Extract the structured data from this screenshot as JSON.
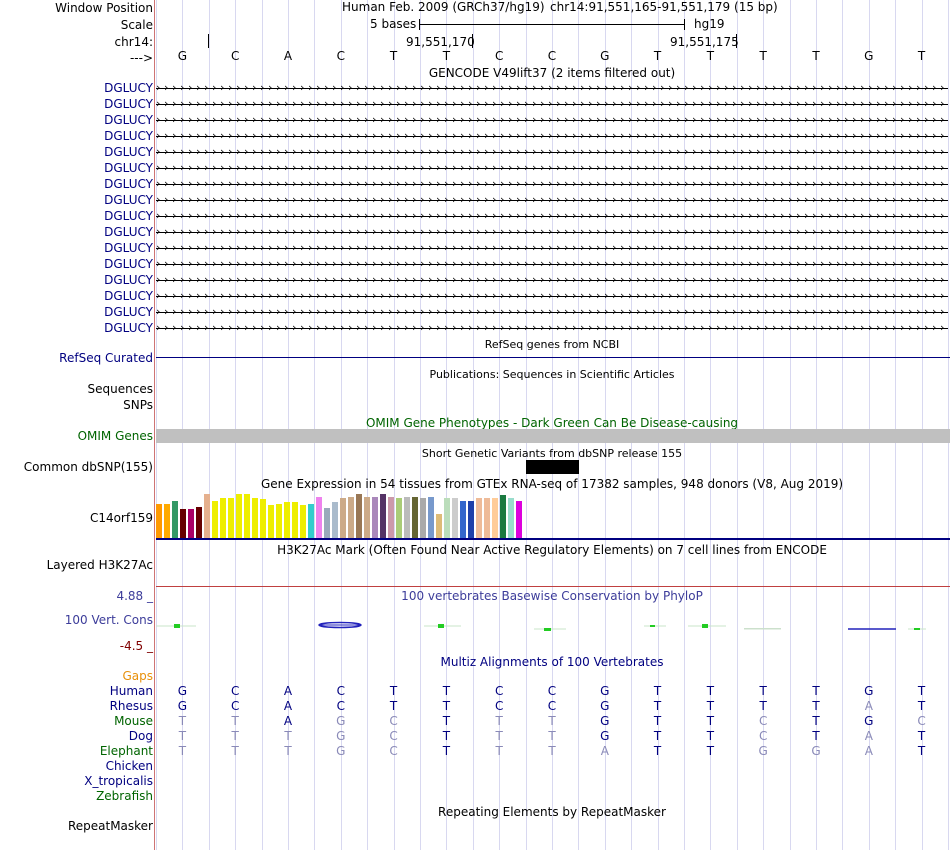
{
  "colors": {
    "label_navy": "#000080",
    "label_green": "#006400",
    "gaps_orange": "#E8900A",
    "phylop_label": "#800000",
    "phylop_title": "#3C3C9A",
    "refseq_line": "#000080",
    "omim_bar": "#C0C0C0",
    "h3k27ac_line": "#C04040"
  },
  "header": {
    "window_position_label": "Window Position",
    "assembly": "Human Feb. 2009 (GRCh37/hg19)",
    "position": "chr14:91,551,165-91,551,179 (15 bp)",
    "scale_label": "Scale",
    "scale_text": "5 bases",
    "scale_db": "hg19",
    "chrom_label": "chr14:",
    "tick1": "91,551,170",
    "tick2": "91,551,175",
    "strand_label": "--->"
  },
  "sequence": [
    "G",
    "C",
    "A",
    "C",
    "T",
    "T",
    "C",
    "C",
    "G",
    "T",
    "T",
    "T",
    "T",
    "G",
    "T"
  ],
  "gencode": {
    "title": "GENCODE V49lift37 (2 items filtered out)",
    "gene_label": "DGLUCY",
    "count": 16
  },
  "refseq": {
    "label": "RefSeq Curated",
    "title": "RefSeq genes from NCBI"
  },
  "publications": {
    "title": "Publications: Sequences in Scientific Articles",
    "sequences_label": "Sequences",
    "snps_label": "SNPs"
  },
  "omim": {
    "title": "OMIM Gene Phenotypes - Dark Green Can Be Disease-causing",
    "label": "OMIM Genes"
  },
  "dbsnp": {
    "title": "Short Genetic Variants from dbSNP release 155",
    "label": "Common dbSNP(155)"
  },
  "gtex": {
    "title": "Gene Expression in 54 tissues from GTEx RNA-seq of 17382 samples, 948 donors (V8, Aug 2019)",
    "label": "C14orf159",
    "bars": [
      {
        "color": "#FF9900",
        "value": 0.68
      },
      {
        "color": "#FFAA00",
        "value": 0.68
      },
      {
        "color": "#339966",
        "value": 0.74
      },
      {
        "color": "#660000",
        "value": 0.58
      },
      {
        "color": "#AA0066",
        "value": 0.58
      },
      {
        "color": "#660000",
        "value": 0.62
      },
      {
        "color": "#E5B08E",
        "value": 0.88
      },
      {
        "color": "#EEEE00",
        "value": 0.74
      },
      {
        "color": "#EEEE00",
        "value": 0.8
      },
      {
        "color": "#EEEE00",
        "value": 0.8
      },
      {
        "color": "#EEEE00",
        "value": 0.88
      },
      {
        "color": "#EEEE00",
        "value": 0.88
      },
      {
        "color": "#EEEE00",
        "value": 0.8
      },
      {
        "color": "#EEEE00",
        "value": 0.78
      },
      {
        "color": "#EEEE00",
        "value": 0.66
      },
      {
        "color": "#EEEE00",
        "value": 0.68
      },
      {
        "color": "#EEEE00",
        "value": 0.72
      },
      {
        "color": "#EEEE00",
        "value": 0.72
      },
      {
        "color": "#EEEE00",
        "value": 0.66
      },
      {
        "color": "#33CCCC",
        "value": 0.68
      },
      {
        "color": "#EE82EE",
        "value": 0.82
      },
      {
        "color": "#99AABB",
        "value": 0.6
      },
      {
        "color": "#AABBCC",
        "value": 0.72
      },
      {
        "color": "#CCAA88",
        "value": 0.8
      },
      {
        "color": "#CCAA88",
        "value": 0.82
      },
      {
        "color": "#997755",
        "value": 0.88
      },
      {
        "color": "#CCAA88",
        "value": 0.82
      },
      {
        "color": "#AA88BB",
        "value": 0.82
      },
      {
        "color": "#553366",
        "value": 0.88
      },
      {
        "color": "#CC99AA",
        "value": 0.82
      },
      {
        "color": "#AACC77",
        "value": 0.8
      },
      {
        "color": "#BBBBBB",
        "value": 0.82
      },
      {
        "color": "#666633",
        "value": 0.82
      },
      {
        "color": "#AAAAAA",
        "value": 0.8
      },
      {
        "color": "#7799CC",
        "value": 0.82
      },
      {
        "color": "#DDBB77",
        "value": 0.48
      },
      {
        "color": "#BBDDBB",
        "value": 0.8
      },
      {
        "color": "#CCCCCC",
        "value": 0.8
      },
      {
        "color": "#3366CC",
        "value": 0.74
      },
      {
        "color": "#1E40AA",
        "value": 0.74
      },
      {
        "color": "#EEBB99",
        "value": 0.8
      },
      {
        "color": "#EEBB99",
        "value": 0.8
      },
      {
        "color": "#FFCC99",
        "value": 0.8
      },
      {
        "color": "#1A7A40",
        "value": 0.86
      },
      {
        "color": "#99DDCC",
        "value": 0.8
      },
      {
        "color": "#DD00DD",
        "value": 0.74
      }
    ]
  },
  "h3k27ac": {
    "title": "H3K27Ac Mark (Often Found Near Active Regulatory Elements) on 7 cell lines from ENCODE",
    "label": "Layered H3K27Ac"
  },
  "phylop": {
    "title": "100 vertebrates Basewise Conservation by PhyloP",
    "label": "100 Vert. Cons",
    "max_label": "4.88 _",
    "min_label": "-4.5 _"
  },
  "multiz": {
    "title": "Multiz Alignments of 100 Vertebrates",
    "gaps_label": "Gaps",
    "species": [
      {
        "name": "Human",
        "seq": [
          "G",
          "C",
          "A",
          "C",
          "T",
          "T",
          "C",
          "C",
          "G",
          "T",
          "T",
          "T",
          "T",
          "G",
          "T"
        ],
        "match": [
          1,
          1,
          1,
          1,
          1,
          1,
          1,
          1,
          1,
          1,
          1,
          1,
          1,
          1,
          1
        ]
      },
      {
        "name": "Rhesus",
        "seq": [
          "G",
          "C",
          "A",
          "C",
          "T",
          "T",
          "C",
          "C",
          "G",
          "T",
          "T",
          "T",
          "T",
          "A",
          "T"
        ],
        "match": [
          1,
          1,
          1,
          1,
          1,
          1,
          1,
          1,
          1,
          1,
          1,
          1,
          1,
          0,
          1
        ]
      },
      {
        "name": "Mouse",
        "seq": [
          "T",
          "T",
          "A",
          "G",
          "C",
          "T",
          "T",
          "T",
          "G",
          "T",
          "T",
          "C",
          "T",
          "G",
          "C"
        ],
        "match": [
          0,
          0,
          1,
          0,
          0,
          1,
          0,
          0,
          1,
          1,
          1,
          0,
          1,
          1,
          0
        ]
      },
      {
        "name": "Dog",
        "seq": [
          "T",
          "T",
          "T",
          "G",
          "C",
          "T",
          "T",
          "T",
          "G",
          "T",
          "T",
          "C",
          "T",
          "A",
          "T"
        ],
        "match": [
          0,
          0,
          0,
          0,
          0,
          1,
          0,
          0,
          1,
          1,
          1,
          0,
          1,
          0,
          1
        ]
      },
      {
        "name": "Elephant",
        "seq": [
          "T",
          "T",
          "T",
          "G",
          "C",
          "T",
          "T",
          "T",
          "A",
          "T",
          "T",
          "G",
          "G",
          "A",
          "T"
        ],
        "match": [
          0,
          0,
          0,
          0,
          0,
          1,
          0,
          0,
          0,
          1,
          1,
          0,
          0,
          0,
          1
        ]
      },
      {
        "name": "Chicken",
        "seq": [],
        "match": []
      },
      {
        "name": "X_tropicalis",
        "seq": [],
        "match": []
      },
      {
        "name": "Zebrafish",
        "seq": [],
        "match": []
      }
    ]
  },
  "repeatmasker": {
    "title": "Repeating Elements by RepeatMasker",
    "label": "RepeatMasker"
  }
}
